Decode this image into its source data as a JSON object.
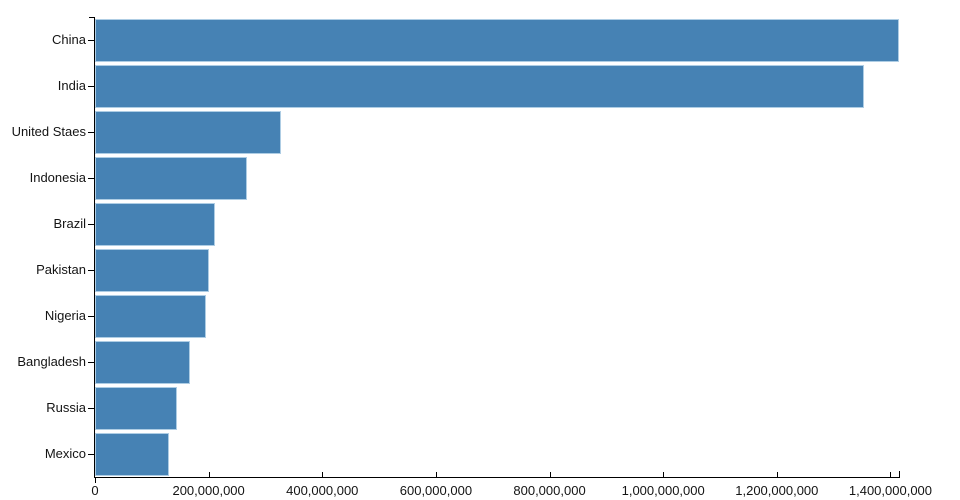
{
  "chart_data": {
    "type": "bar",
    "orientation": "horizontal",
    "title": "",
    "xlabel": "",
    "ylabel": "",
    "categories": [
      "China",
      "India",
      "United Staes",
      "Indonesia",
      "Brazil",
      "Pakistan",
      "Nigeria",
      "Bangladesh",
      "Russia",
      "Mexico"
    ],
    "values": [
      1415045928,
      1354051854,
      326766748,
      266794980,
      210867954,
      200813818,
      195875237,
      166368149,
      143964709,
      130759074
    ],
    "xlim": [
      0,
      1415045928
    ],
    "x_ticks": [
      0,
      200000000,
      400000000,
      600000000,
      800000000,
      1000000000,
      1200000000,
      1400000000
    ],
    "x_tick_labels": [
      "0",
      "200,000,000",
      "400,000,000",
      "600,000,000",
      "800,000,000",
      "1,000,000,000",
      "1,200,000,000",
      "1,400,000,000"
    ],
    "grid": false,
    "legend": null,
    "colors": {
      "bar_fill": "#4682b4",
      "bar_border": "#aecde4",
      "axis": "#000000",
      "text": "#141414",
      "background": "#ffffff"
    }
  }
}
